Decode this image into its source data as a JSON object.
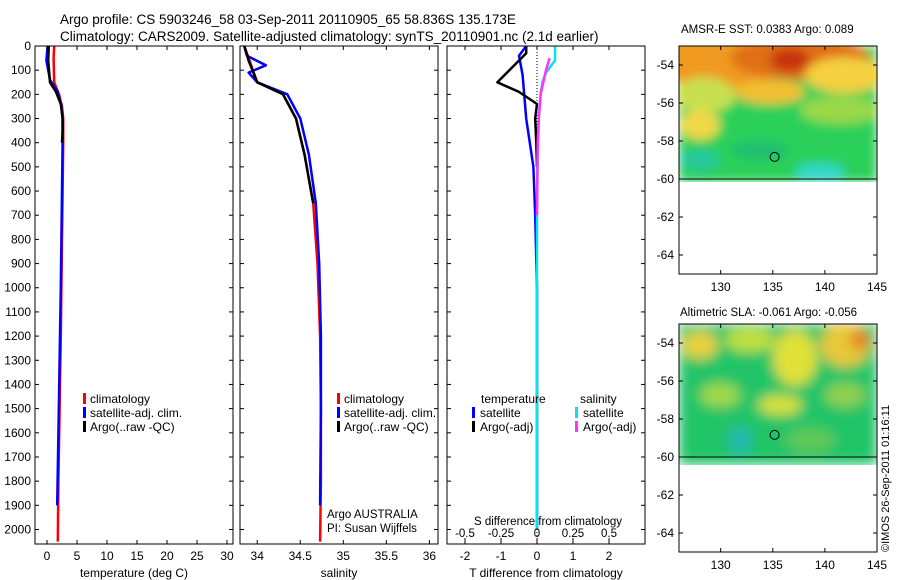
{
  "header": {
    "line1": "Argo profile: CS 5903246_58 03-Sep-2011 20110905_65 58.836S 135.173E",
    "line2": "Climatology: CARS2009. Satellite-adjusted climatology: synTS_20110901.nc (2.1d earlier)"
  },
  "colors": {
    "climatology": "#ff0000",
    "satellite": "#0000ff",
    "argo": "#000000",
    "satellite_salinity": "#00e5ee",
    "argo_salinity": "#ff33ff"
  },
  "depth_ticks": [
    "0",
    "100",
    "200",
    "300",
    "400",
    "500",
    "600",
    "700",
    "800",
    "900",
    "1000",
    "1100",
    "1200",
    "1300",
    "1400",
    "1500",
    "1600",
    "1700",
    "1800",
    "1900",
    "2000"
  ],
  "chart_data": [
    {
      "type": "line",
      "name": "temperature-profile",
      "xlabel": "temperature (deg C)",
      "xlim": [
        -2,
        31
      ],
      "ylim": [
        2060,
        0
      ],
      "xticks": [
        0,
        5,
        10,
        15,
        20,
        25,
        30
      ],
      "xtick_labels": [
        "0",
        "5",
        "10",
        "15",
        "20",
        "25",
        "30"
      ],
      "legend": [
        "climatology",
        "satellite-adj. clim.",
        "Argo(..raw -QC)"
      ],
      "series": [
        {
          "name": "climatology",
          "color": "#ff0000",
          "x": [
            1.2,
            1.1,
            1.2,
            2.0,
            2.5,
            2.7,
            2.7,
            2.6,
            2.5,
            2.4,
            2.3,
            2.1,
            1.9,
            1.8
          ],
          "y": [
            0,
            50,
            150,
            200,
            250,
            300,
            400,
            600,
            800,
            1000,
            1200,
            1500,
            1800,
            2050
          ]
        },
        {
          "name": "satellite-adj. clim.",
          "color": "#0000ff",
          "x": [
            0.1,
            -0.1,
            0.5,
            1.8,
            2.4,
            2.6,
            2.6,
            2.5,
            2.4,
            2.3,
            2.1,
            1.9,
            1.7
          ],
          "y": [
            0,
            60,
            140,
            190,
            250,
            300,
            400,
            600,
            800,
            1000,
            1300,
            1600,
            1900
          ]
        },
        {
          "name": "Argo(..raw -QC)",
          "color": "#000000",
          "x": [
            0.3,
            0.2,
            0.5,
            1.5,
            2.3,
            2.6,
            2.6,
            2.5
          ],
          "y": [
            0,
            60,
            150,
            190,
            240,
            300,
            350,
            400
          ]
        }
      ]
    },
    {
      "type": "line",
      "name": "salinity-profile",
      "xlabel": "salinity",
      "xlim": [
        33.8,
        36.1
      ],
      "ylim": [
        2060,
        0
      ],
      "xticks": [
        34,
        34.5,
        35,
        35.5,
        36
      ],
      "xtick_labels": [
        "34",
        "34.5",
        "35",
        "35.5",
        "36"
      ],
      "legend": [
        "climatology",
        "satellite-adj. clim.",
        "Argo(..raw -QC)"
      ],
      "annotation": [
        "Argo AUSTRALIA",
        "PI: Susan Wijffels"
      ],
      "series": [
        {
          "name": "climatology",
          "color": "#ff0000",
          "x": [
            33.85,
            33.9,
            34.0,
            34.3,
            34.45,
            34.55,
            34.65,
            34.7,
            34.73,
            34.74,
            34.74,
            34.73
          ],
          "y": [
            0,
            50,
            150,
            200,
            300,
            450,
            650,
            900,
            1200,
            1500,
            1800,
            2050
          ]
        },
        {
          "name": "satellite-adj. clim.",
          "color": "#0000ff",
          "x": [
            33.85,
            33.88,
            34.1,
            33.9,
            34.0,
            34.35,
            34.5,
            34.6,
            34.68,
            34.72,
            34.74,
            34.74,
            34.73
          ],
          "y": [
            0,
            40,
            80,
            110,
            150,
            200,
            300,
            450,
            650,
            900,
            1200,
            1500,
            1900
          ]
        },
        {
          "name": "Argo(..raw -QC)",
          "color": "#000000",
          "x": [
            33.85,
            33.9,
            34.0,
            34.3,
            34.45,
            34.55,
            34.65
          ],
          "y": [
            0,
            60,
            150,
            200,
            300,
            450,
            650
          ]
        }
      ]
    },
    {
      "type": "line",
      "name": "difference-profile",
      "xlabel": "T difference from climatology",
      "toplabel": "S difference from climatology",
      "xlim": [
        -2.5,
        3
      ],
      "ylim": [
        2060,
        0
      ],
      "xticks": [
        -2,
        -1,
        0,
        1,
        2
      ],
      "xtick_labels": [
        "-2",
        "-1",
        "0",
        "1",
        "2"
      ],
      "sticks": [
        -0.5,
        -0.25,
        0,
        0.25,
        0.5
      ],
      "stick_labels": [
        "-0.5",
        "-0.25",
        "0",
        "0.25",
        "0.5"
      ],
      "legend_t_title": "temperature",
      "legend_s_title": "salinity",
      "legend_t": [
        "satellite",
        "Argo(-adj)"
      ],
      "legend_s": [
        "satellite",
        "Argo(-adj)"
      ],
      "series": [
        {
          "name": "T satellite",
          "color": "#0000ff",
          "x": [
            -0.3,
            -0.5,
            -0.4,
            -0.3,
            -0.2,
            -0.1,
            -0.05,
            0,
            0,
            0,
            0
          ],
          "y": [
            0,
            40,
            120,
            300,
            400,
            500,
            700,
            1000,
            1300,
            1600,
            2000
          ]
        },
        {
          "name": "T Argo(-adj)",
          "color": "#000000",
          "x": [
            -0.3,
            -0.3,
            -1.1,
            -0.5,
            0.0,
            -0.05,
            -0.02,
            0
          ],
          "y": [
            0,
            30,
            150,
            190,
            240,
            300,
            400,
            500
          ]
        },
        {
          "name": "S satellite",
          "color": "#00e5ee",
          "x": [
            0.5,
            0.5,
            0.25,
            0.15,
            0.1,
            0.05,
            0.02,
            0,
            0,
            0
          ],
          "y": [
            0,
            60,
            110,
            150,
            200,
            300,
            450,
            700,
            1000,
            2000
          ]
        },
        {
          "name": "S Argo(-adj)",
          "color": "#ff33ff",
          "x": [
            0.35,
            0.25,
            0.1,
            0.05,
            0.02,
            0
          ],
          "y": [
            50,
            100,
            200,
            300,
            400,
            700
          ]
        }
      ]
    },
    {
      "type": "heatmap",
      "name": "amsr-e-sst-map",
      "title": "AMSR-E SST: 0.0383 Argo: 0.089",
      "xlim": [
        126,
        145
      ],
      "ylim": [
        -65,
        -53
      ],
      "xticks": [
        130,
        135,
        140,
        145
      ],
      "yticks": [
        -54,
        -56,
        -58,
        -60,
        -62,
        -64
      ],
      "xtick_labels": [
        "130",
        "135",
        "140",
        "145"
      ],
      "ytick_labels": [
        "-54",
        "-56",
        "-58",
        "-60",
        "-62",
        "-64"
      ],
      "marker": {
        "lon": 135.173,
        "lat": -58.836
      },
      "coverage": {
        "lat_from": -60,
        "lat_to": -53
      }
    },
    {
      "type": "heatmap",
      "name": "altimetric-sla-map",
      "title": "Altimetric SLA: -0.061 Argo: -0.056",
      "xlim": [
        126,
        145
      ],
      "ylim": [
        -65,
        -53
      ],
      "xticks": [
        130,
        135,
        140,
        145
      ],
      "yticks": [
        -54,
        -56,
        -58,
        -60,
        -62,
        -64
      ],
      "xtick_labels": [
        "130",
        "135",
        "140",
        "145"
      ],
      "ytick_labels": [
        "-54",
        "-56",
        "-58",
        "-60",
        "-62",
        "-64"
      ],
      "marker": {
        "lon": 135.173,
        "lat": -58.836
      },
      "coverage": {
        "lat_from": -60,
        "lat_to": -53
      }
    }
  ],
  "credit": "©IMOS 26-Sep-2011 01:16:11"
}
